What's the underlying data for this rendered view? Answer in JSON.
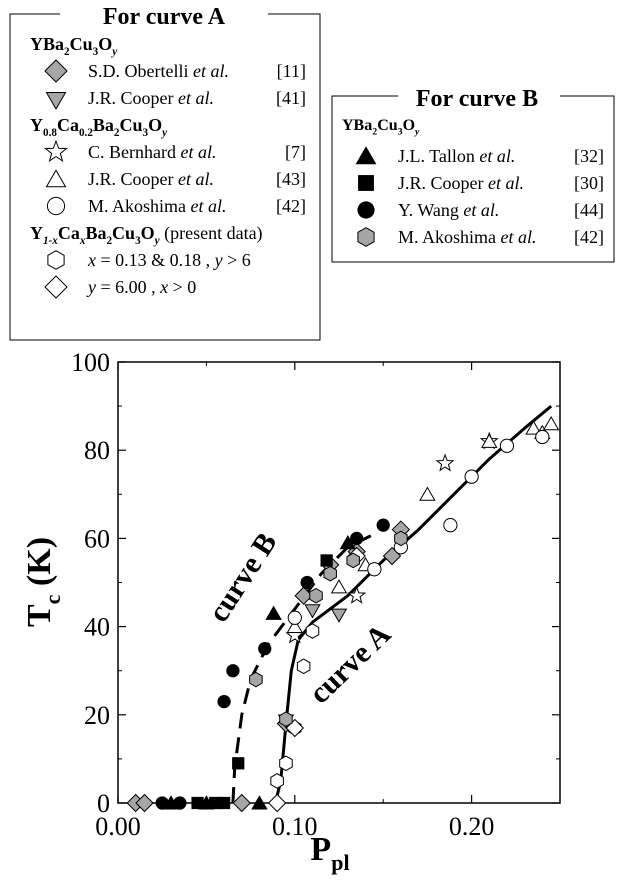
{
  "chart_data": {
    "type": "scatter",
    "xlabel": "P",
    "xlabel_sub": "pl",
    "ylabel": "T",
    "ylabel_sub": "c",
    "ylabel_unit": " (K)",
    "xlim": [
      0.0,
      0.25
    ],
    "ylim": [
      0,
      100
    ],
    "x_ticks": [
      0.0,
      0.1,
      0.2
    ],
    "x_tick_labels": [
      "0.00",
      "0.10",
      "0.20"
    ],
    "y_ticks": [
      0,
      20,
      40,
      60,
      80,
      100
    ],
    "y_tick_labels": [
      "0",
      "20",
      "40",
      "60",
      "80",
      "100"
    ],
    "grid": false,
    "curve_labels": [
      {
        "text": "curve B",
        "x": 0.075,
        "y": 50,
        "angle": -57
      },
      {
        "text": "curve A",
        "x": 0.135,
        "y": 30,
        "angle": -44
      }
    ],
    "legend_A": {
      "title": "For curve A",
      "groups": [
        {
          "compound": [
            "YBa",
            "2",
            "Cu",
            "3",
            "O",
            "y"
          ],
          "entries": [
            {
              "marker": "diamond-gray",
              "author": "S.D. Obertelli",
              "etal": " et al.",
              "ref": "[11]"
            },
            {
              "marker": "tri-down-gray",
              "author": "J.R. Cooper",
              "etal": " et al.",
              "ref": "[41]"
            }
          ]
        },
        {
          "compound": [
            "Y",
            "0.8",
            "Ca",
            "0.2",
            "Ba",
            "2",
            "Cu",
            "3",
            "O",
            "y"
          ],
          "entries": [
            {
              "marker": "star-open",
              "author": "C. Bernhard",
              "etal": " et al.",
              "ref": "[7]"
            },
            {
              "marker": "tri-up-open",
              "author": "J.R. Cooper",
              "etal": " et al.",
              "ref": "[43]"
            },
            {
              "marker": "circle-open",
              "author": "M. Akoshima",
              "etal": " et al.",
              "ref": "[42]"
            }
          ]
        },
        {
          "compound": [
            "Y",
            "1-x",
            "Ca",
            "x",
            "Ba",
            "2",
            "Cu",
            "3",
            "O",
            "y"
          ],
          "note": " (present data)",
          "entries": [
            {
              "marker": "hex-open",
              "text": "x = 0.13 & 0.18 ,  y > 6"
            },
            {
              "marker": "diamond-open",
              "text": "y = 6.00 ,  x > 0"
            }
          ]
        }
      ]
    },
    "legend_B": {
      "title": "For curve B",
      "compound": [
        "YBa",
        "2",
        "Cu",
        "3",
        "O",
        "y"
      ],
      "entries": [
        {
          "marker": "tri-up-filled",
          "author": "J.L. Tallon",
          "etal": " et al.",
          "ref": "[32]"
        },
        {
          "marker": "square-filled",
          "author": "J.R. Cooper",
          "etal": " et al.",
          "ref": "[30]"
        },
        {
          "marker": "circle-filled",
          "author": "Y. Wang",
          "etal": " et al.",
          "ref": "[44]"
        },
        {
          "marker": "hex-gray",
          "author": "M. Akoshima",
          "etal": " et al.",
          "ref": "[42]"
        }
      ]
    },
    "lines": [
      {
        "name": "curve A",
        "style": "solid",
        "points": [
          [
            0.089,
            0
          ],
          [
            0.092,
            5
          ],
          [
            0.095,
            18
          ],
          [
            0.098,
            30
          ],
          [
            0.102,
            37
          ],
          [
            0.11,
            41
          ],
          [
            0.13,
            47
          ],
          [
            0.15,
            55
          ],
          [
            0.17,
            62
          ],
          [
            0.19,
            70
          ],
          [
            0.21,
            78
          ],
          [
            0.23,
            85
          ],
          [
            0.245,
            90
          ]
        ]
      },
      {
        "name": "curve B",
        "style": "dashed",
        "points": [
          [
            0.065,
            0
          ],
          [
            0.066,
            8
          ],
          [
            0.07,
            20
          ],
          [
            0.075,
            28
          ],
          [
            0.085,
            36
          ],
          [
            0.1,
            44
          ],
          [
            0.115,
            52
          ],
          [
            0.13,
            58
          ],
          [
            0.145,
            61
          ]
        ]
      }
    ],
    "series": [
      {
        "marker": "diamond-gray",
        "points": [
          [
            0.01,
            0
          ],
          [
            0.015,
            0
          ],
          [
            0.07,
            0
          ],
          [
            0.095,
            18
          ],
          [
            0.105,
            47
          ],
          [
            0.12,
            54
          ],
          [
            0.135,
            57
          ],
          [
            0.155,
            56
          ],
          [
            0.16,
            62
          ]
        ]
      },
      {
        "marker": "tri-down-gray",
        "points": [
          [
            0.095,
            19
          ],
          [
            0.11,
            44
          ],
          [
            0.125,
            43
          ]
        ]
      },
      {
        "marker": "star-open",
        "points": [
          [
            0.1,
            38
          ],
          [
            0.135,
            47
          ],
          [
            0.185,
            77
          ],
          [
            0.21,
            82
          ]
        ]
      },
      {
        "marker": "tri-up-open",
        "points": [
          [
            0.1,
            40
          ],
          [
            0.125,
            49
          ],
          [
            0.14,
            54
          ],
          [
            0.175,
            70
          ],
          [
            0.21,
            82
          ],
          [
            0.235,
            85
          ],
          [
            0.24,
            84
          ],
          [
            0.245,
            86
          ]
        ]
      },
      {
        "marker": "circle-open",
        "points": [
          [
            0.1,
            42
          ],
          [
            0.145,
            53
          ],
          [
            0.16,
            58
          ],
          [
            0.188,
            63
          ],
          [
            0.2,
            74
          ],
          [
            0.22,
            81
          ],
          [
            0.24,
            83
          ]
        ]
      },
      {
        "marker": "hex-open",
        "points": [
          [
            0.09,
            5
          ],
          [
            0.095,
            9
          ],
          [
            0.1,
            17
          ],
          [
            0.105,
            31
          ],
          [
            0.11,
            39
          ]
        ]
      },
      {
        "marker": "diamond-open",
        "points": [
          [
            0.09,
            0
          ],
          [
            0.1,
            17
          ],
          [
            0.135,
            56
          ]
        ]
      },
      {
        "marker": "tri-up-filled",
        "points": [
          [
            0.03,
            0
          ],
          [
            0.05,
            0
          ],
          [
            0.08,
            0
          ],
          [
            0.088,
            43
          ],
          [
            0.13,
            59
          ]
        ]
      },
      {
        "marker": "square-filled",
        "points": [
          [
            0.045,
            0
          ],
          [
            0.055,
            0
          ],
          [
            0.06,
            0
          ],
          [
            0.068,
            9
          ],
          [
            0.118,
            55
          ]
        ]
      },
      {
        "marker": "circle-filled",
        "points": [
          [
            0.025,
            0
          ],
          [
            0.035,
            0
          ],
          [
            0.06,
            23
          ],
          [
            0.065,
            30
          ],
          [
            0.083,
            35
          ],
          [
            0.107,
            50
          ],
          [
            0.135,
            60
          ],
          [
            0.15,
            63
          ]
        ]
      },
      {
        "marker": "hex-gray",
        "points": [
          [
            0.078,
            28
          ],
          [
            0.095,
            19
          ],
          [
            0.112,
            47
          ],
          [
            0.12,
            52
          ],
          [
            0.133,
            55
          ],
          [
            0.16,
            60
          ]
        ]
      }
    ]
  }
}
